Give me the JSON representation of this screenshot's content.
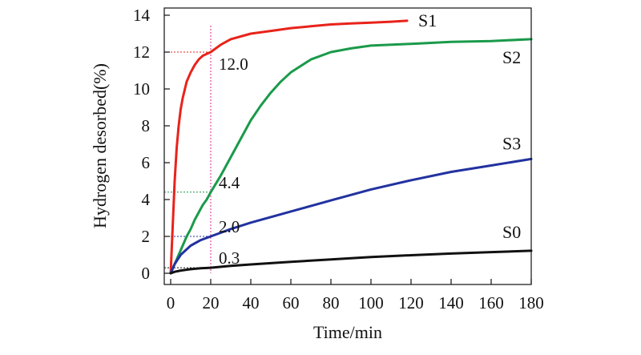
{
  "chart_data": {
    "type": "line",
    "title": "",
    "xlabel": "Time/min",
    "ylabel": "Hydrogen desorbed(%)",
    "xlim": [
      -2,
      180
    ],
    "ylim": [
      -0.5,
      14
    ],
    "x_ticks": [
      0,
      20,
      40,
      60,
      80,
      100,
      120,
      140,
      160,
      180
    ],
    "y_ticks": [
      0,
      2,
      4,
      6,
      8,
      10,
      12,
      14
    ],
    "grid": false,
    "legend": "series labels placed at curve ends",
    "series": [
      {
        "name": "S1",
        "color": "#e8231b",
        "x": [
          0,
          1,
          2,
          3,
          4,
          5,
          6,
          8,
          10,
          12,
          14,
          16,
          18,
          20,
          25,
          30,
          40,
          50,
          60,
          70,
          80,
          90,
          100,
          110,
          118
        ],
        "y": [
          0,
          2.5,
          5.0,
          6.8,
          8.0,
          8.9,
          9.5,
          10.4,
          10.9,
          11.3,
          11.6,
          11.8,
          11.9,
          12.0,
          12.4,
          12.7,
          13.0,
          13.15,
          13.3,
          13.4,
          13.5,
          13.55,
          13.6,
          13.65,
          13.7
        ]
      },
      {
        "name": "S2",
        "color": "#1a9a4a",
        "x": [
          0,
          2,
          4,
          6,
          8,
          10,
          12,
          14,
          16,
          18,
          20,
          25,
          30,
          35,
          40,
          45,
          50,
          55,
          60,
          70,
          80,
          90,
          100,
          120,
          140,
          160,
          180
        ],
        "y": [
          0,
          0.5,
          1.0,
          1.5,
          2.0,
          2.4,
          2.9,
          3.3,
          3.7,
          4.0,
          4.4,
          5.3,
          6.3,
          7.3,
          8.3,
          9.1,
          9.8,
          10.4,
          10.9,
          11.6,
          12.0,
          12.2,
          12.35,
          12.45,
          12.55,
          12.6,
          12.7
        ]
      },
      {
        "name": "S3",
        "color": "#2232a0",
        "x": [
          0,
          2,
          5,
          10,
          15,
          20,
          30,
          40,
          60,
          80,
          100,
          120,
          140,
          160,
          180
        ],
        "y": [
          0,
          0.5,
          1.0,
          1.5,
          1.8,
          2.0,
          2.4,
          2.75,
          3.35,
          3.95,
          4.55,
          5.05,
          5.5,
          5.85,
          6.2
        ]
      },
      {
        "name": "S0",
        "color": "#111111",
        "x": [
          0,
          2,
          5,
          10,
          15,
          20,
          30,
          40,
          60,
          80,
          100,
          120,
          140,
          160,
          180
        ],
        "y": [
          0,
          0.08,
          0.15,
          0.22,
          0.27,
          0.3,
          0.4,
          0.48,
          0.62,
          0.75,
          0.88,
          0.98,
          1.07,
          1.15,
          1.22
        ]
      }
    ],
    "annotations": [
      {
        "text": "12.0",
        "x": 20,
        "y": 12.0,
        "color": "#e8231b"
      },
      {
        "text": "4.4",
        "x": 20,
        "y": 4.4,
        "color": "#1a9a4a"
      },
      {
        "text": "2.0",
        "x": 20,
        "y": 2.0,
        "color": "#2232a0"
      },
      {
        "text": "0.3",
        "x": 20,
        "y": 0.3,
        "color": "#111111"
      }
    ],
    "reference_line": {
      "x": 20,
      "color": "#e0269a"
    }
  }
}
